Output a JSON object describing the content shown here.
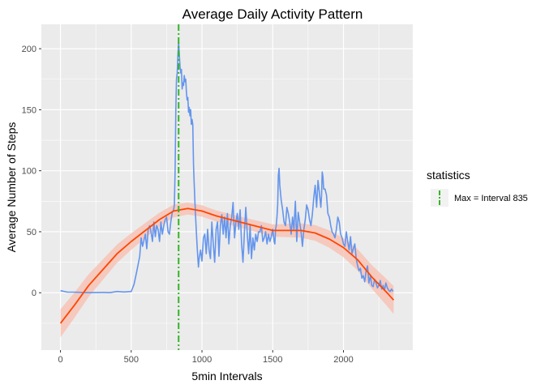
{
  "chart_data": {
    "type": "line",
    "title": "Average Daily Activity Pattern",
    "xlabel": "5min Intervals",
    "ylabel": "Average Number of Steps",
    "xlim": [
      -135,
      2490
    ],
    "ylim": [
      -47,
      220
    ],
    "xticks": [
      0,
      500,
      1000,
      1500,
      2000
    ],
    "yticks": [
      0,
      50,
      100,
      150,
      200
    ],
    "grid": true,
    "legend_position": "right",
    "legend": {
      "title": "statistics",
      "entries": [
        "Max = Interval 835"
      ]
    },
    "colors": {
      "panel": "#ebebeb",
      "grid": "#ffffff",
      "activity": "#6495ed",
      "smooth": "#ff4500",
      "band": "#f7c3b6",
      "max_line": "#33b524"
    },
    "vline": {
      "x": 835,
      "label": "Max = Interval 835"
    },
    "series": [
      {
        "x": [
          0,
          50,
          100,
          150,
          200,
          250,
          300,
          350,
          400,
          450,
          500,
          510,
          520,
          540,
          560,
          570,
          580,
          600,
          610,
          620,
          630,
          640,
          650,
          660,
          670,
          680,
          690,
          700,
          710,
          720,
          730,
          740,
          750,
          760,
          770,
          780,
          790,
          800,
          805,
          810,
          815,
          820,
          825,
          830,
          835,
          840,
          845,
          850,
          855,
          860,
          865,
          870,
          875,
          880,
          885,
          890,
          895,
          900,
          905,
          910,
          915,
          920,
          925,
          930,
          935,
          940,
          945,
          950,
          955,
          960,
          965,
          970,
          975,
          980,
          990,
          1000,
          1010,
          1020,
          1030,
          1040,
          1050,
          1060,
          1070,
          1080,
          1090,
          1100,
          1110,
          1120,
          1130,
          1140,
          1150,
          1160,
          1170,
          1180,
          1190,
          1200,
          1210,
          1220,
          1230,
          1240,
          1250,
          1260,
          1270,
          1280,
          1290,
          1300,
          1310,
          1320,
          1330,
          1340,
          1350,
          1360,
          1370,
          1380,
          1390,
          1400,
          1410,
          1420,
          1430,
          1440,
          1450,
          1460,
          1470,
          1480,
          1490,
          1500,
          1510,
          1515,
          1520,
          1525,
          1530,
          1535,
          1540,
          1545,
          1550,
          1560,
          1570,
          1580,
          1590,
          1600,
          1610,
          1620,
          1630,
          1640,
          1650,
          1660,
          1670,
          1680,
          1690,
          1700,
          1710,
          1720,
          1730,
          1740,
          1750,
          1760,
          1770,
          1780,
          1790,
          1800,
          1810,
          1820,
          1830,
          1840,
          1845,
          1850,
          1855,
          1860,
          1870,
          1880,
          1890,
          1900,
          1910,
          1920,
          1930,
          1940,
          1950,
          1960,
          1970,
          1980,
          1990,
          2000,
          2010,
          2020,
          2030,
          2040,
          2050,
          2060,
          2070,
          2080,
          2090,
          2100,
          2110,
          2120,
          2130,
          2140,
          2150,
          2160,
          2170,
          2180,
          2190,
          2200,
          2210,
          2220,
          2230,
          2240,
          2250,
          2260,
          2270,
          2280,
          2290,
          2300,
          2310,
          2320,
          2330,
          2340,
          2350
        ],
        "values": [
          1.7,
          0.5,
          0.5,
          0.3,
          0.1,
          0.2,
          0.3,
          0.1,
          1.0,
          0.6,
          1.0,
          3.8,
          7.0,
          18,
          30,
          45,
          38,
          48,
          36,
          52,
          55,
          50,
          42,
          58,
          46,
          55,
          52,
          42,
          58,
          48,
          55,
          60,
          62,
          50,
          48,
          58,
          66,
          68,
          72,
          100,
          150,
          175,
          180,
          195,
          206,
          195,
          185,
          180,
          183,
          167,
          172,
          170,
          178,
          173,
          175,
          165,
          158,
          160,
          148,
          152,
          145,
          150,
          138,
          142,
          138,
          105,
          90,
          75,
          62,
          50,
          40,
          30,
          21,
          28,
          35,
          26,
          45,
          48,
          32,
          52,
          35,
          28,
          58,
          40,
          25,
          52,
          58,
          30,
          55,
          64,
          48,
          62,
          45,
          65,
          40,
          55,
          62,
          74,
          45,
          58,
          65,
          52,
          68,
          40,
          25,
          50,
          70,
          48,
          32,
          55,
          28,
          45,
          35,
          48,
          42,
          50,
          50,
          55,
          42,
          45,
          50,
          40,
          48,
          42,
          46,
          52,
          42,
          40,
          52,
          55,
          62,
          72,
          96,
          102,
          88,
          76,
          68,
          58,
          55,
          70,
          65,
          58,
          48,
          62,
          52,
          75,
          42,
          66,
          58,
          50,
          38,
          52,
          60,
          72,
          68,
          60,
          55,
          64,
          78,
          88,
          70,
          92,
          82,
          70,
          80,
          99,
          95,
          85,
          85,
          80,
          65,
          62,
          55,
          50,
          48,
          45,
          52,
          62,
          58,
          48,
          45,
          40,
          38,
          50,
          42,
          35,
          46,
          32,
          36,
          40,
          28,
          22,
          18,
          20,
          12,
          14,
          9,
          18,
          22,
          8,
          14,
          6,
          5,
          11,
          8,
          4,
          6,
          10,
          3,
          6,
          2,
          8,
          4,
          2,
          1,
          3,
          1.1
        ]
      },
      {
        "x": [
          0,
          100,
          200,
          300,
          400,
          500,
          600,
          700,
          800,
          900,
          1000,
          1100,
          1200,
          1300,
          1400,
          1500,
          1600,
          1700,
          1800,
          1900,
          2000,
          2100,
          2200,
          2300,
          2355
        ],
        "values": [
          -25,
          -10,
          6,
          19,
          32,
          42,
          51,
          60,
          67,
          69,
          67,
          63,
          60,
          57,
          54,
          51,
          51,
          51,
          49,
          44,
          37,
          27,
          13,
          1,
          -6
        ]
      }
    ]
  }
}
